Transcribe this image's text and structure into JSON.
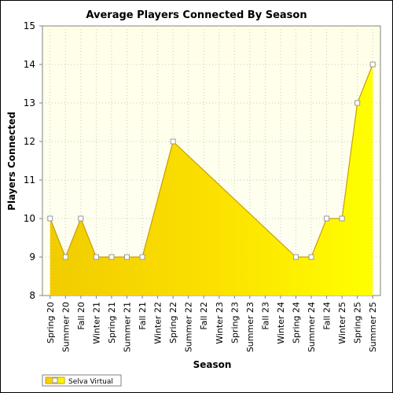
{
  "chart_data": {
    "type": "area",
    "title": "Average Players Connected By Season",
    "xlabel": "Season",
    "ylabel": "Players Connected",
    "ylim": [
      8,
      15
    ],
    "yticks": [
      8,
      9,
      10,
      11,
      12,
      13,
      14,
      15
    ],
    "grid": true,
    "legend_position": "bottom-left",
    "categories": [
      "Spring 20",
      "Summer 20",
      "Fall 20",
      "Winter 21",
      "Spring 21",
      "Summer 21",
      "Fall 21",
      "Winter 22",
      "Spring 22",
      "Summer 22",
      "Fall 22",
      "Winter 23",
      "Spring 23",
      "Summer 23",
      "Fall 23",
      "Winter 24",
      "Spring 24",
      "Summer 24",
      "Fall 24",
      "Winter 25",
      "Spring 25",
      "Summer 25"
    ],
    "series": [
      {
        "name": "Selva Virtual",
        "color": "#ffe600",
        "points": [
          {
            "x": "Spring 20",
            "y": 10
          },
          {
            "x": "Summer 20",
            "y": 9
          },
          {
            "x": "Fall 20",
            "y": 10
          },
          {
            "x": "Winter 21",
            "y": 9
          },
          {
            "x": "Spring 21",
            "y": 9
          },
          {
            "x": "Summer 21",
            "y": 9
          },
          {
            "x": "Fall 21",
            "y": 9
          },
          {
            "x": "Spring 22",
            "y": 12
          },
          {
            "x": "Spring 24",
            "y": 9
          },
          {
            "x": "Summer 24",
            "y": 9
          },
          {
            "x": "Fall 24",
            "y": 10
          },
          {
            "x": "Winter 25",
            "y": 10
          },
          {
            "x": "Spring 25",
            "y": 13
          },
          {
            "x": "Summer 25",
            "y": 14
          }
        ]
      }
    ]
  }
}
